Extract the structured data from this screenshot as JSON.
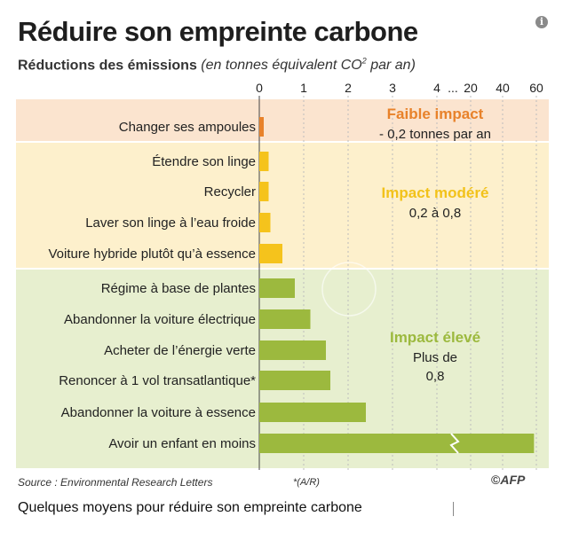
{
  "page": {
    "title": "Réduire son empreinte carbone",
    "subtitle_main": "Réductions des émissions",
    "subtitle_italic": "(en tonnes équivalent CO",
    "subtitle_sup": "2",
    "subtitle_end": " par an)",
    "source": "Source : Environmental Research Letters",
    "note": "*(A/R)",
    "logo_copy": "©",
    "logo_name": "AFP",
    "caption": "Quelques moyens pour réduire son empreinte carbone"
  },
  "chart_data": {
    "type": "bar",
    "orientation": "horizontal",
    "title": "Réduire son empreinte carbone",
    "xlabel": "Réductions des émissions (en tonnes équivalent CO2 par an)",
    "axis": {
      "scale": "broken",
      "ticks_linear": [
        "0",
        "1",
        "2",
        "3",
        "4"
      ],
      "ellipsis": "...",
      "ticks_upper": [
        "20",
        "40",
        "60"
      ],
      "note": "axis linear 0–4 then compressed 20, 40, 60"
    },
    "categories": [
      "Changer ses ampoules",
      "Étendre son linge",
      "Recycler",
      "Laver son linge à l’eau froide",
      "Voiture hybride plutôt qu’à essence",
      "Régime à base de plantes",
      "Abandonner la voiture électrique",
      "Acheter de l’énergie verte",
      "Renoncer à 1 vol transatlantique*",
      "Abandonner la voiture à essence",
      "Avoir un enfant en moins"
    ],
    "values": [
      0.1,
      0.21,
      0.21,
      0.25,
      0.52,
      0.8,
      1.15,
      1.5,
      1.6,
      2.4,
      58.6
    ],
    "groups": [
      {
        "label": "Faible impact",
        "desc": [
          "- 0,2 tonnes par an"
        ],
        "color": "#e8822a",
        "bg": "#fbe4cf",
        "items": [
          0
        ]
      },
      {
        "label": "Impact modéré",
        "desc": [
          "0,2 à 0,8"
        ],
        "color": "#f2c21a",
        "bg": "#fdf0cc",
        "items": [
          1,
          2,
          3,
          4
        ]
      },
      {
        "label": "Impact élevé",
        "desc": [
          "Plus de",
          "0,8"
        ],
        "color": "#9cb93e",
        "bg": "#e7efcf",
        "items": [
          5,
          6,
          7,
          8,
          9,
          10
        ]
      }
    ],
    "bar_colors": [
      "#e8822a",
      "#f5c31c",
      "#f5c31c",
      "#f5c31c",
      "#f5c31c",
      "#9cb93e",
      "#9cb93e",
      "#9cb93e",
      "#9cb93e",
      "#9cb93e",
      "#9cb93e"
    ],
    "grid": true,
    "break_marker_on": 10
  }
}
